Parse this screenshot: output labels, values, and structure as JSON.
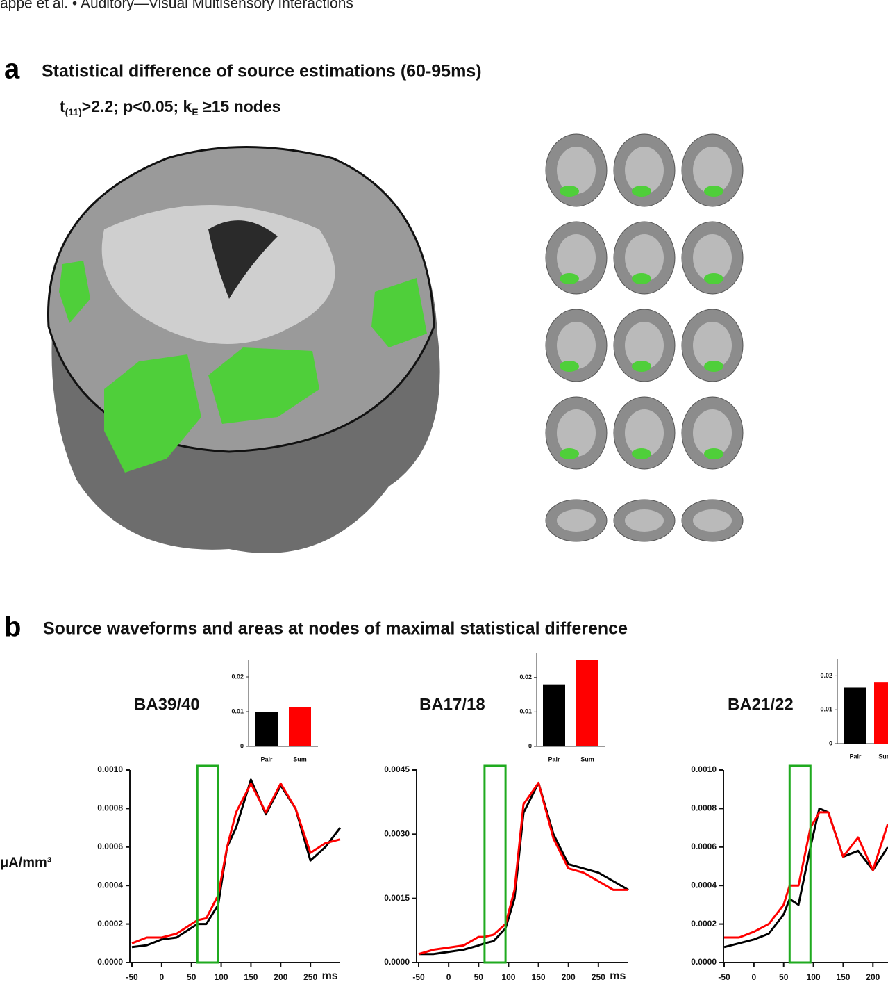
{
  "header": "appe et al. • Auditory—Visual Multisensory Interactions",
  "panel_a": {
    "letter": "a",
    "title": "Statistical difference of source estimations (60-95ms)",
    "subtitle_parts": [
      "t",
      "(11)",
      ">2.2; p<0.05; k",
      "E",
      " ≥15 nodes"
    ]
  },
  "panel_b": {
    "letter": "b",
    "title": "Source waveforms and areas at nodes of maximal statistical difference",
    "ylabel": "μA/mm³"
  },
  "chart_data": [
    {
      "type": "line",
      "title": "BA39/40",
      "xlabel": "ms",
      "x": [
        -50,
        -25,
        0,
        25,
        50,
        60,
        75,
        95,
        110,
        125,
        150,
        175,
        200,
        225,
        250,
        275,
        300
      ],
      "series": [
        {
          "color": "#000000",
          "values": [
            8e-05,
            9e-05,
            0.00012,
            0.00013,
            0.00018,
            0.0002,
            0.0002,
            0.0003,
            0.0006,
            0.0007,
            0.00095,
            0.00077,
            0.00092,
            0.0008,
            0.00053,
            0.0006,
            0.0007
          ]
        },
        {
          "color": "#ff0000",
          "values": [
            0.0001,
            0.00013,
            0.00013,
            0.00015,
            0.0002,
            0.00022,
            0.00023,
            0.00035,
            0.0006,
            0.00078,
            0.00093,
            0.00078,
            0.00093,
            0.0008,
            0.00057,
            0.00062,
            0.00064
          ]
        }
      ],
      "xlim": [
        -50,
        300
      ],
      "xticks": [
        -50,
        0,
        50,
        100,
        150,
        200,
        250
      ],
      "ylim": [
        0,
        0.001
      ],
      "yticks": [
        {
          "value": 0,
          "label": "0.0000"
        },
        {
          "value": 0.0002,
          "label": "0.0002"
        },
        {
          "value": 0.0004,
          "label": "0.0004"
        },
        {
          "value": 0.0006,
          "label": "0.0006"
        },
        {
          "value": 0.0008,
          "label": "0.0008"
        },
        {
          "value": 0.001,
          "label": "0.0010"
        }
      ],
      "window": [
        60,
        95
      ],
      "window_color": "#1faa1f"
    },
    {
      "type": "bar",
      "categories": [
        "Pair",
        "Sum"
      ],
      "values": [
        0.0098,
        0.0114
      ],
      "colors": [
        "#000000",
        "#ff0000"
      ],
      "ylim": [
        0,
        0.025
      ],
      "yticks": [
        0,
        0.01,
        0.02
      ]
    },
    {
      "type": "line",
      "title": "BA17/18",
      "xlabel": "ms",
      "x": [
        -50,
        -25,
        0,
        25,
        50,
        60,
        75,
        95,
        110,
        125,
        150,
        175,
        200,
        225,
        250,
        275,
        300
      ],
      "series": [
        {
          "color": "#000000",
          "values": [
            0.0002,
            0.0002,
            0.00025,
            0.0003,
            0.0004,
            0.00045,
            0.0005,
            0.0008,
            0.0015,
            0.0035,
            0.0042,
            0.003,
            0.0023,
            0.0022,
            0.0021,
            0.0019,
            0.0017
          ]
        },
        {
          "color": "#ff0000",
          "values": [
            0.0002,
            0.0003,
            0.00035,
            0.0004,
            0.0006,
            0.0006,
            0.00065,
            0.0009,
            0.0017,
            0.0037,
            0.0042,
            0.0029,
            0.0022,
            0.0021,
            0.0019,
            0.0017,
            0.0017
          ]
        }
      ],
      "xlim": [
        -50,
        300
      ],
      "xticks": [
        -50,
        0,
        50,
        100,
        150,
        200,
        250
      ],
      "ylim": [
        0,
        0.0045
      ],
      "yticks": [
        {
          "value": 0,
          "label": "0.0000"
        },
        {
          "value": 0.0015,
          "label": "0.0015"
        },
        {
          "value": 0.003,
          "label": "0.0030"
        },
        {
          "value": 0.0045,
          "label": "0.0045"
        }
      ],
      "window": [
        60,
        95
      ],
      "window_color": "#1faa1f"
    },
    {
      "type": "bar",
      "categories": [
        "Pair",
        "Sum"
      ],
      "values": [
        0.018,
        0.025
      ],
      "colors": [
        "#000000",
        "#ff0000"
      ],
      "ylim": [
        0,
        0.027
      ],
      "yticks": [
        0,
        0.01,
        0.02
      ]
    },
    {
      "type": "line",
      "title": "BA21/22",
      "x": [
        -50,
        -25,
        0,
        25,
        50,
        60,
        75,
        95,
        110,
        125,
        150,
        175,
        200,
        225
      ],
      "series": [
        {
          "color": "#000000",
          "values": [
            8e-05,
            0.0001,
            0.00012,
            0.00015,
            0.00025,
            0.00033,
            0.0003,
            0.0006,
            0.0008,
            0.00078,
            0.00055,
            0.00058,
            0.00048,
            0.0006
          ]
        },
        {
          "color": "#ff0000",
          "values": [
            0.00013,
            0.00013,
            0.00016,
            0.0002,
            0.0003,
            0.0004,
            0.0004,
            0.0007,
            0.00078,
            0.00078,
            0.00055,
            0.00065,
            0.00048,
            0.00072
          ]
        }
      ],
      "xlim": [
        -50,
        300
      ],
      "xticks": [
        -50,
        0,
        50,
        100,
        150,
        200
      ],
      "ylim": [
        0,
        0.001
      ],
      "yticks": [
        {
          "value": 0,
          "label": "0.0000"
        },
        {
          "value": 0.0002,
          "label": "0.0002"
        },
        {
          "value": 0.0004,
          "label": "0.0004"
        },
        {
          "value": 0.0006,
          "label": "0.0006"
        },
        {
          "value": 0.0008,
          "label": "0.0008"
        },
        {
          "value": 0.001,
          "label": "0.0010"
        }
      ],
      "window": [
        60,
        95
      ],
      "window_color": "#1faa1f"
    },
    {
      "type": "bar",
      "categories": [
        "Pair",
        "Sum"
      ],
      "values": [
        0.0165,
        0.018
      ],
      "colors": [
        "#000000",
        "#ff0000"
      ],
      "ylim": [
        0,
        0.025
      ],
      "yticks": [
        0,
        0.01,
        0.02
      ]
    }
  ]
}
